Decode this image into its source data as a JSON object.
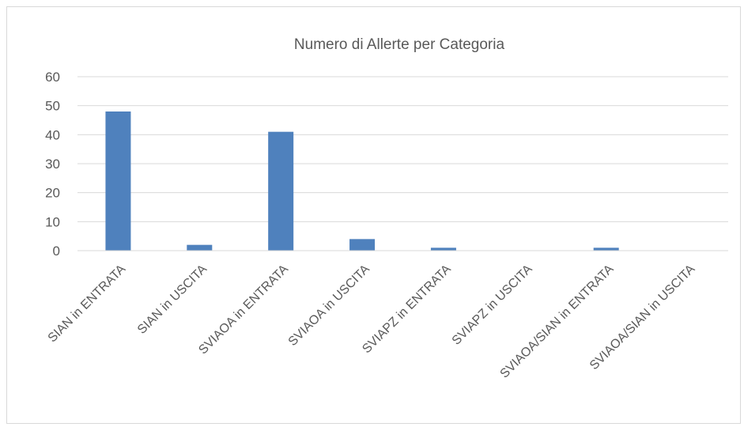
{
  "chart_data": {
    "type": "bar",
    "title": "Numero di Allerte per Categoria",
    "categories": [
      "SIAN in ENTRATA",
      "SIAN in USCITA",
      "SVIAOA in ENTRATA",
      "SVIAOA in USCITA",
      "SVIAPZ in ENTRATA",
      "SVIAPZ in USCITA",
      "SVIAOA/SIAN in ENTRATA",
      "SVIAOA/SIAN in USCITA"
    ],
    "values": [
      48,
      2,
      41,
      4,
      1,
      0,
      1,
      0
    ],
    "ylim": [
      0,
      60
    ],
    "yticks": [
      "0",
      "10",
      "20",
      "30",
      "40",
      "50",
      "60"
    ],
    "grid": true,
    "legend": "none",
    "colors": {
      "bar": "#4f81bd",
      "grid": "#d9d9d9",
      "text": "#595959"
    }
  }
}
